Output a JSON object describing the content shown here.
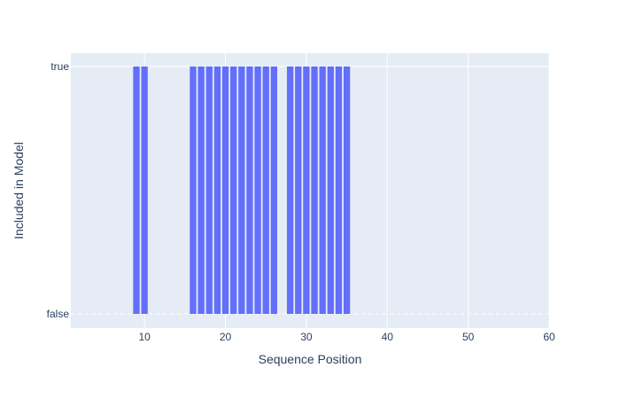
{
  "chart_data": {
    "type": "bar",
    "xlabel": "Sequence Position",
    "ylabel": "Included in Model",
    "xlim": [
      0.9,
      60
    ],
    "y_categories": [
      "false",
      "true"
    ],
    "x_ticks": [
      10,
      20,
      30,
      40,
      50,
      60
    ],
    "y_ticks": [
      "true",
      "false"
    ],
    "grid": true,
    "legend": "none",
    "x": [
      9,
      10,
      16,
      17,
      18,
      19,
      20,
      21,
      22,
      23,
      24,
      25,
      26,
      28,
      29,
      30,
      31,
      32,
      33,
      34,
      35
    ],
    "values": [
      "true",
      "true",
      "true",
      "true",
      "true",
      "true",
      "true",
      "true",
      "true",
      "true",
      "true",
      "true",
      "true",
      "true",
      "true",
      "true",
      "true",
      "true",
      "true",
      "true",
      "true"
    ],
    "bar_color": "#636efa",
    "plot_bg": "#e5ecf6"
  }
}
